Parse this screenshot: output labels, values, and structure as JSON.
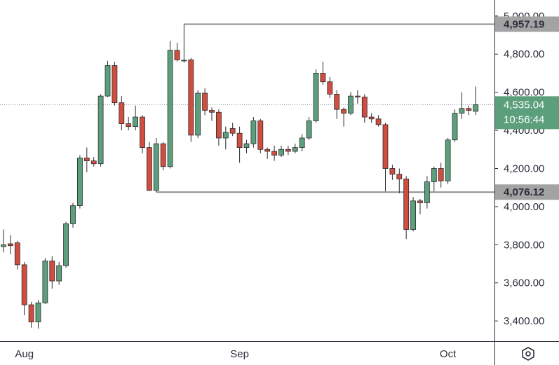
{
  "chart_data": {
    "type": "candlestick",
    "categories": [
      null,
      null,
      null,
      "Aug",
      null,
      null,
      null,
      null,
      null,
      null,
      null,
      null,
      null,
      null,
      null,
      null,
      null,
      null,
      null,
      null,
      null,
      null,
      null,
      null,
      null,
      null,
      null,
      null,
      null,
      null,
      null,
      null,
      null,
      null,
      "Sep",
      null,
      null,
      null,
      null,
      null,
      null,
      null,
      null,
      null,
      null,
      null,
      null,
      null,
      null,
      null,
      null,
      null,
      null,
      null,
      null,
      null,
      null,
      null,
      null,
      null,
      null,
      null,
      null,
      null,
      "Oct",
      null,
      null,
      null,
      null
    ],
    "open": [
      3790,
      3805,
      3810,
      3695,
      3485,
      3395,
      3495,
      3715,
      3610,
      3690,
      3910,
      4005,
      4255,
      4240,
      4225,
      4580,
      4740,
      4545,
      4435,
      4420,
      4470,
      4310,
      4085,
      4330,
      4210,
      4820,
      4765,
      4770,
      4375,
      4595,
      4505,
      4495,
      4360,
      4410,
      4385,
      4310,
      4330,
      4450,
      4300,
      4290,
      4270,
      4300,
      4290,
      4310,
      4360,
      4450,
      4700,
      4655,
      4590,
      4510,
      4490,
      4580,
      4575,
      4470,
      4460,
      4430,
      4200,
      4170,
      4145,
      3880,
      4030,
      4020,
      4130,
      4200,
      4135,
      4350,
      4490,
      4515,
      4500
    ],
    "high": [
      3880,
      3850,
      3820,
      3710,
      3500,
      3510,
      3730,
      3740,
      3710,
      3920,
      4020,
      4270,
      4310,
      4260,
      4590,
      4765,
      4760,
      4580,
      4470,
      4530,
      4480,
      4340,
      4360,
      4340,
      4870,
      4860,
      4957,
      4780,
      4610,
      4620,
      4520,
      4510,
      4420,
      4440,
      4420,
      4350,
      4470,
      4460,
      4310,
      4320,
      4320,
      4320,
      4330,
      4380,
      4470,
      4720,
      4760,
      4680,
      4610,
      4520,
      4600,
      4610,
      4590,
      4490,
      4480,
      4440,
      4220,
      4200,
      4160,
      4050,
      4040,
      4160,
      4210,
      4230,
      4360,
      4510,
      4600,
      4530,
      4630
    ],
    "low": [
      3760,
      3750,
      3670,
      3430,
      3365,
      3360,
      3490,
      3570,
      3590,
      3680,
      3890,
      3990,
      4180,
      4210,
      4210,
      4575,
      4530,
      4400,
      4400,
      4400,
      4280,
      4082,
      4076,
      4190,
      4200,
      4760,
      4755,
      4340,
      4360,
      4480,
      4450,
      4320,
      4300,
      4370,
      4230,
      4280,
      4310,
      4280,
      4250,
      4240,
      4260,
      4270,
      4280,
      4290,
      4350,
      4440,
      4640,
      4570,
      4460,
      4420,
      4480,
      4540,
      4440,
      4440,
      4420,
      4080,
      4140,
      4070,
      3830,
      3870,
      3960,
      3990,
      4080,
      4100,
      4120,
      4340,
      4460,
      4480,
      4480
    ],
    "close": [
      3800,
      3795,
      3695,
      3485,
      3395,
      3495,
      3715,
      3610,
      3690,
      3910,
      4005,
      4255,
      4240,
      4225,
      4580,
      4740,
      4545,
      4435,
      4420,
      4470,
      4310,
      4085,
      4330,
      4210,
      4820,
      4770,
      4768,
      4375,
      4595,
      4505,
      4495,
      4360,
      4390,
      4385,
      4310,
      4330,
      4450,
      4300,
      4290,
      4270,
      4300,
      4290,
      4310,
      4360,
      4450,
      4700,
      4655,
      4590,
      4510,
      4490,
      4580,
      4575,
      4470,
      4460,
      4430,
      4200,
      4170,
      4145,
      3880,
      4030,
      4020,
      4130,
      4200,
      4135,
      4350,
      4490,
      4515,
      4505,
      4535.04
    ],
    "up_color": "#5c9f7c",
    "down_color": "#d14d40",
    "ylim": [
      3294,
      5084
    ],
    "yticks": [
      {
        "value": 3400,
        "label": "3,400.00"
      },
      {
        "value": 3600,
        "label": "3,600.00"
      },
      {
        "value": 3800,
        "label": "3,800.00"
      },
      {
        "value": 4000,
        "label": "4,000.00"
      },
      {
        "value": 4200,
        "label": "4,200.00"
      },
      {
        "value": 4400,
        "label": "4,400.00"
      },
      {
        "value": 4600,
        "label": "4,600.00"
      },
      {
        "value": 4800,
        "label": "4,800.00"
      },
      {
        "value": 5000,
        "label": "5,000.00"
      }
    ],
    "levels": [
      {
        "value": 4957.19,
        "label": "4,957.19"
      },
      {
        "value": 4076.12,
        "label": "4,076.12"
      }
    ],
    "last_price": {
      "value": 4535.04,
      "label": "4,535.04"
    },
    "countdown": "10:56:44"
  }
}
